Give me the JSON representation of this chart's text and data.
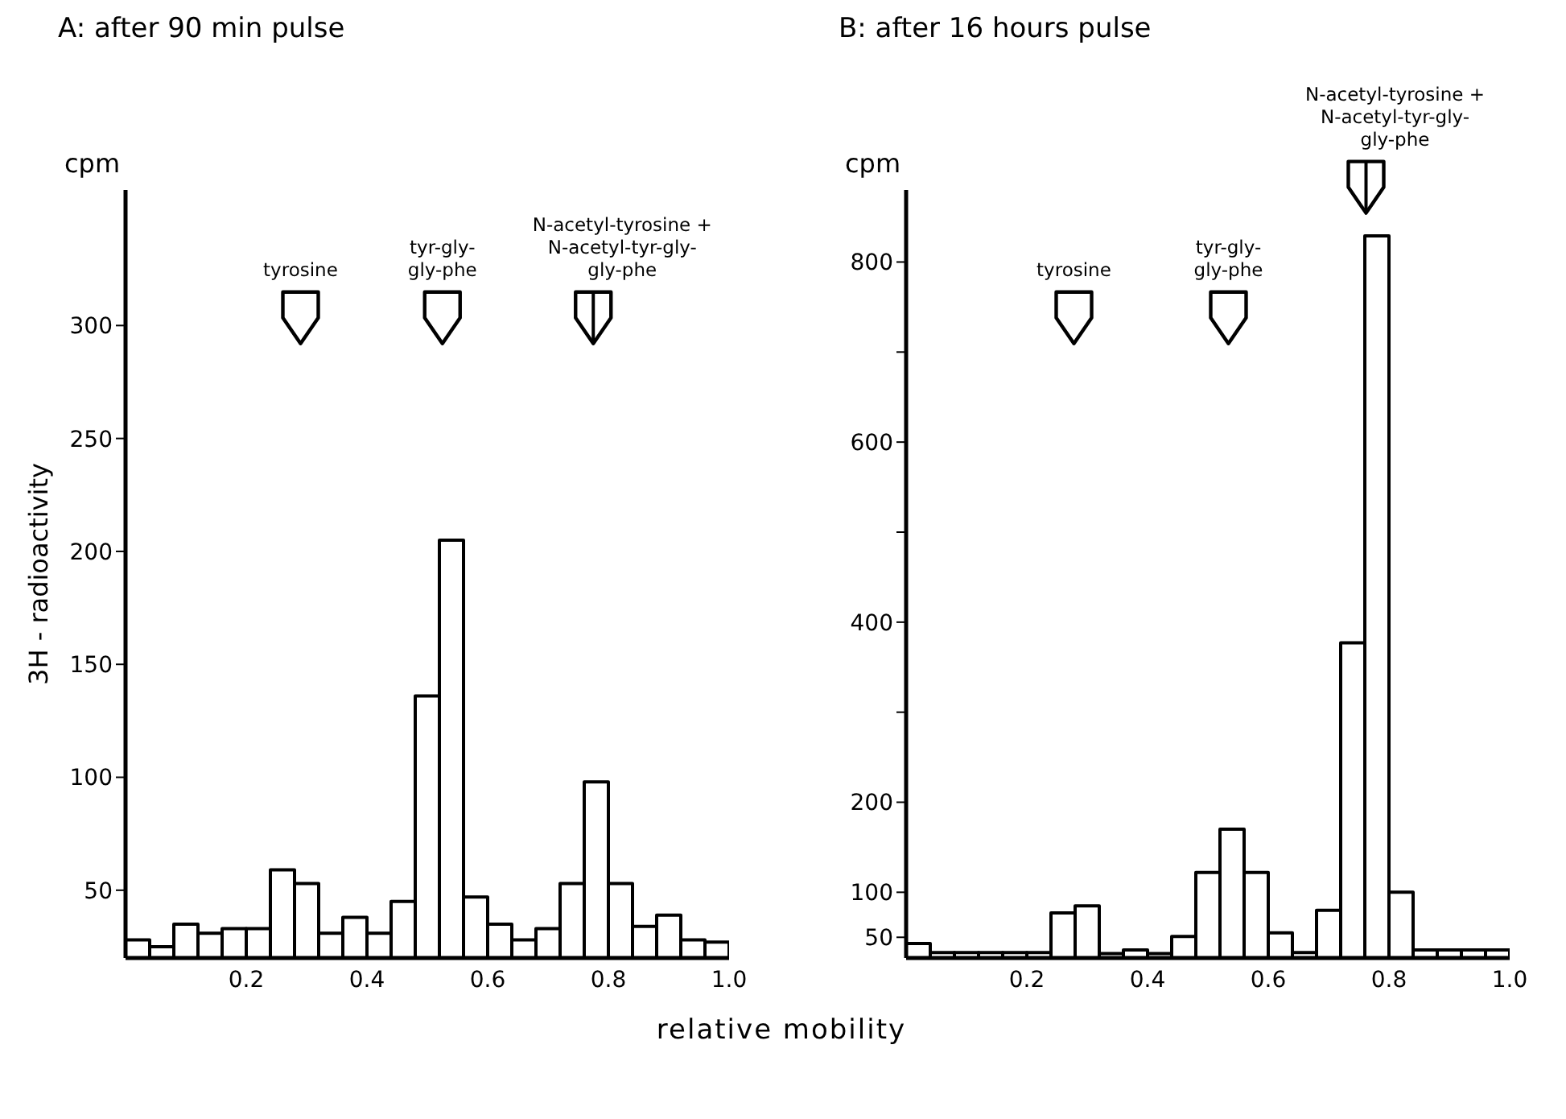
{
  "chart_data": [
    {
      "type": "histogram",
      "title": "A: after 90 min pulse",
      "ylabel": "3H - radioactivity",
      "xlabel": "relative mobility",
      "bins": [
        0,
        0.04,
        0.08,
        0.12,
        0.16,
        0.2,
        0.24,
        0.28,
        0.32,
        0.36,
        0.4,
        0.44,
        0.48,
        0.52,
        0.56,
        0.6,
        0.64,
        0.68,
        0.72,
        0.76,
        0.8,
        0.84,
        0.88,
        0.92,
        0.96,
        1.0
      ],
      "values": [
        28,
        25,
        35,
        31,
        33,
        33,
        59,
        53,
        31,
        38,
        31,
        45,
        136,
        205,
        47,
        35,
        28,
        33,
        53,
        98,
        53,
        34,
        39,
        28,
        27
      ],
      "color": "#000000",
      "xlim": [
        0,
        1.0
      ],
      "xticks": [
        0.2,
        0.4,
        0.6,
        0.8,
        {
          "value": 1.0,
          "label": "1.0"
        }
      ],
      "ylim": [
        20,
        360
      ],
      "yticks": [
        50,
        100,
        150,
        200,
        250,
        300
      ],
      "annotations": [
        "cpm",
        "tyrosine",
        "tyr-gly-\ngly-phe",
        "N-acetyl-tyrosine +\nN-acetyl-tyr-gly-\ngly-phe"
      ],
      "grid": false,
      "legend": false
    },
    {
      "type": "histogram",
      "title": "B: after 16 hours pulse",
      "bins": [
        0,
        0.04,
        0.08,
        0.12,
        0.16,
        0.2,
        0.24,
        0.28,
        0.32,
        0.36,
        0.4,
        0.44,
        0.48,
        0.52,
        0.56,
        0.6,
        0.64,
        0.68,
        0.72,
        0.76,
        0.8,
        0.84,
        0.88,
        0.92,
        0.96,
        1.0
      ],
      "values": [
        43,
        33,
        33,
        33,
        33,
        33,
        77,
        85,
        32,
        36,
        32,
        51,
        122,
        170,
        122,
        55,
        33,
        80,
        377,
        829,
        100,
        36,
        36,
        36,
        36
      ],
      "color": "#000000",
      "xlim": [
        0,
        1.0
      ],
      "xticks": [
        0.2,
        0.4,
        0.6,
        0.8,
        {
          "value": 1.0,
          "label": "1.0"
        }
      ],
      "ylim": [
        27,
        880
      ],
      "yticks": [
        50,
        100,
        200,
        {
          "value": 300,
          "label": null
        },
        400,
        {
          "value": 500,
          "label": null
        },
        600,
        {
          "value": 700,
          "label": null
        },
        800
      ],
      "annotations": [
        "cpm",
        "tyrosine",
        "tyr-gly-\ngly-phe",
        "N-acetyl-tyrosine +\nN-acetyl-tyr-gly-\ngly-phe"
      ],
      "grid": false,
      "legend": false
    }
  ]
}
